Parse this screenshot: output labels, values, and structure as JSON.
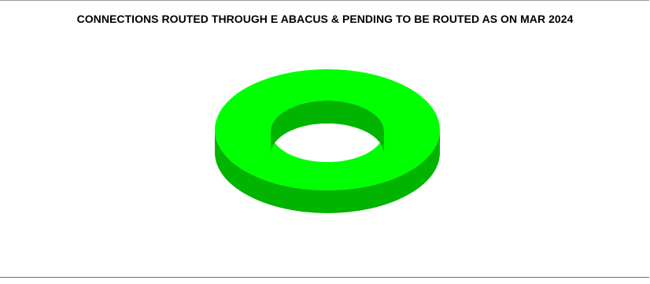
{
  "chart_data": {
    "type": "pie",
    "style": "3d-donut",
    "title": "CONNECTIONS ROUTED THROUGH E ABACUS & PENDING TO BE ROUTED AS ON  MAR 2024",
    "slices": [
      {
        "value": 100,
        "color": "#00ff00",
        "side_color": "#00b400"
      }
    ],
    "legend": "none",
    "data_labels": "none"
  }
}
